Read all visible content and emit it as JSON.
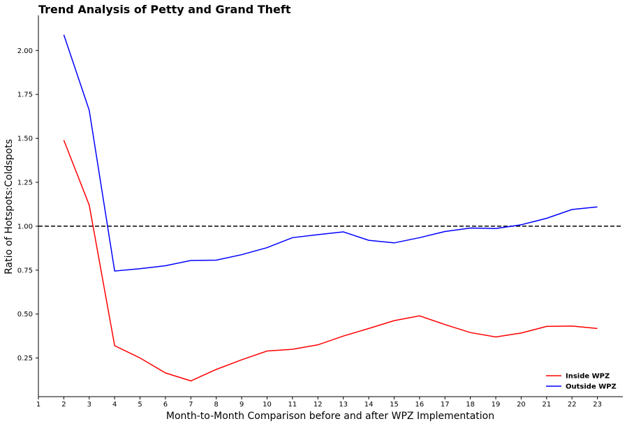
{
  "chart_data": {
    "type": "line",
    "title": "Trend Analysis of Petty and Grand Theft",
    "xlabel": "Month-to-Month Comparison before and after WPZ Implementation",
    "ylabel": "Ratio of Hotspots:Coldspots",
    "xlim": [
      1,
      24
    ],
    "ylim": [
      0.03,
      2.2
    ],
    "x_ticks": [
      1,
      2,
      3,
      4,
      5,
      6,
      7,
      8,
      9,
      10,
      11,
      12,
      13,
      14,
      15,
      16,
      17,
      18,
      19,
      20,
      21,
      22,
      23
    ],
    "y_ticks": [
      0.25,
      0.5,
      0.75,
      1.0,
      1.25,
      1.5,
      1.75,
      2.0
    ],
    "y_tick_labels": [
      "0.25",
      "0.50",
      "0.75",
      "1.00",
      "1.25",
      "1.50",
      "1.75",
      "2.00"
    ],
    "x": [
      2,
      3,
      4,
      5,
      6,
      7,
      8,
      9,
      10,
      11,
      12,
      13,
      14,
      15,
      16,
      17,
      18,
      19,
      20,
      21,
      22,
      23
    ],
    "series": [
      {
        "name": "Inside WPZ",
        "color": "#ff0000",
        "values": [
          1.49,
          1.12,
          0.32,
          0.25,
          0.165,
          0.12,
          0.185,
          0.24,
          0.29,
          0.3,
          0.325,
          0.375,
          0.418,
          0.463,
          0.49,
          0.44,
          0.395,
          0.37,
          0.392,
          0.43,
          0.432,
          0.418
        ]
      },
      {
        "name": "Outside WPZ",
        "color": "#0000ff",
        "values": [
          2.09,
          1.66,
          0.745,
          0.758,
          0.775,
          0.805,
          0.807,
          0.838,
          0.878,
          0.935,
          0.952,
          0.968,
          0.92,
          0.905,
          0.935,
          0.97,
          0.99,
          0.987,
          1.008,
          1.045,
          1.095,
          1.11
        ]
      }
    ],
    "reference_line": {
      "y": 1.0,
      "style": "dashed",
      "color": "#000000"
    },
    "legend": {
      "position": "lower-right"
    },
    "grid": false
  }
}
